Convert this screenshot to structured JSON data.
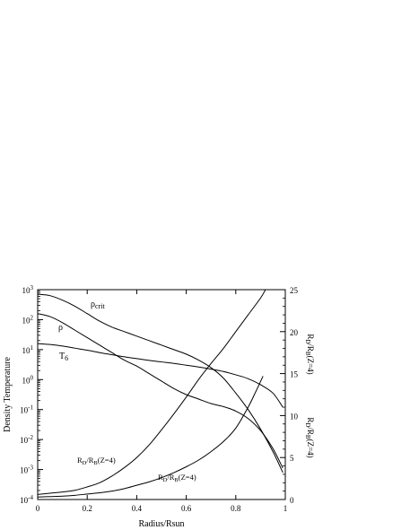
{
  "chart_data": {
    "type": "line",
    "xlabel": "Radius/Rsun",
    "ylabel_left": "Density  Temperature",
    "ylabel_right": "R_D/R_B(Z=4)",
    "ylabel_right_2": "R_D/R_B(Z=4)",
    "xlim": [
      0,
      1
    ],
    "ylim_left_log10": [
      -4,
      3
    ],
    "ylim_right": [
      0,
      25
    ],
    "x_ticks": [
      "0",
      "0.2",
      "0.4",
      "0.6",
      "0.8",
      "1"
    ],
    "x_tick_values": [
      0,
      0.2,
      0.4,
      0.6,
      0.8,
      1.0
    ],
    "y_left_tick_exponents": [
      3,
      2,
      1,
      0,
      -1,
      -2,
      -3,
      -4
    ],
    "y_left_tick_base": "10",
    "y_right_ticks": [
      "25",
      "20",
      "15",
      "10",
      "5",
      "0"
    ],
    "y_right_tick_values": [
      25,
      20,
      15,
      10,
      5,
      0
    ],
    "series": [
      {
        "name": "ρcrit",
        "axis": "left_log",
        "label_sub": "crit",
        "x": [
          0,
          0.05,
          0.1,
          0.15,
          0.2,
          0.25,
          0.3,
          0.35,
          0.4,
          0.45,
          0.5,
          0.55,
          0.6,
          0.65,
          0.7,
          0.75,
          0.8,
          0.85,
          0.9,
          0.95,
          0.99
        ],
        "log10y": [
          2.85,
          2.8,
          2.65,
          2.45,
          2.2,
          1.95,
          1.75,
          1.6,
          1.45,
          1.3,
          1.15,
          1.0,
          0.85,
          0.65,
          0.4,
          0.05,
          -0.45,
          -1.0,
          -1.65,
          -2.4,
          -3.1
        ]
      },
      {
        "name": "ρ",
        "axis": "left_log",
        "x": [
          0,
          0.05,
          0.1,
          0.15,
          0.2,
          0.25,
          0.3,
          0.35,
          0.4,
          0.45,
          0.5,
          0.55,
          0.6,
          0.65,
          0.7,
          0.75,
          0.8,
          0.85,
          0.9,
          0.95,
          0.99
        ],
        "log10y": [
          2.2,
          2.1,
          1.9,
          1.65,
          1.4,
          1.15,
          0.9,
          0.65,
          0.45,
          0.2,
          -0.05,
          -0.3,
          -0.5,
          -0.65,
          -0.8,
          -0.9,
          -1.05,
          -1.3,
          -1.7,
          -2.3,
          -2.95
        ]
      },
      {
        "name": "T6",
        "axis": "left_log",
        "label_sub": "6",
        "x": [
          0,
          0.05,
          0.1,
          0.15,
          0.2,
          0.25,
          0.3,
          0.35,
          0.4,
          0.45,
          0.5,
          0.55,
          0.6,
          0.65,
          0.7,
          0.75,
          0.8,
          0.85,
          0.9,
          0.95,
          0.99
        ],
        "log10y": [
          1.2,
          1.17,
          1.12,
          1.05,
          0.98,
          0.9,
          0.83,
          0.76,
          0.7,
          0.64,
          0.59,
          0.54,
          0.48,
          0.42,
          0.35,
          0.27,
          0.16,
          0.03,
          -0.17,
          -0.45,
          -0.92
        ]
      },
      {
        "name": "RD/RB(Z=4)",
        "axis": "right",
        "label_sub1": "D",
        "label_sub2": "B",
        "label_tail": "(Z=4)",
        "x": [
          0,
          0.05,
          0.1,
          0.15,
          0.2,
          0.25,
          0.3,
          0.35,
          0.4,
          0.45,
          0.5,
          0.55,
          0.6,
          0.65,
          0.7,
          0.75,
          0.8,
          0.85,
          0.9,
          0.92
        ],
        "y": [
          0.6,
          0.75,
          0.9,
          1.1,
          1.5,
          2.0,
          2.8,
          3.8,
          5.0,
          6.5,
          8.3,
          10.2,
          12.2,
          14.3,
          16.2,
          18.0,
          20.0,
          22.0,
          24.0,
          25.0
        ]
      },
      {
        "name": "RD/RB(Z=4)",
        "axis": "right",
        "label_sub1": "D",
        "label_sub2": "B",
        "label_tail": "(Z=4)",
        "x": [
          0,
          0.05,
          0.1,
          0.15,
          0.2,
          0.25,
          0.3,
          0.35,
          0.4,
          0.45,
          0.5,
          0.55,
          0.6,
          0.65,
          0.7,
          0.75,
          0.8,
          0.85,
          0.88,
          0.91
        ],
        "y": [
          0.3,
          0.35,
          0.4,
          0.5,
          0.65,
          0.8,
          1.0,
          1.3,
          1.7,
          2.1,
          2.6,
          3.2,
          3.9,
          4.7,
          5.7,
          6.9,
          8.5,
          11.0,
          12.8,
          14.7
        ]
      }
    ]
  }
}
